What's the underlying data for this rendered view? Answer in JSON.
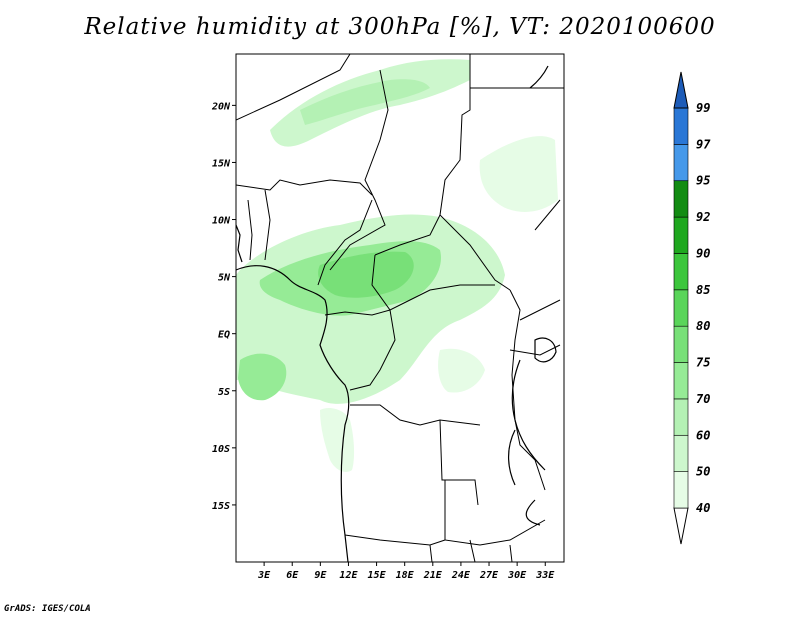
{
  "title": "Relative humidity at 300hPa [%], VT: 2020100600",
  "credit": "GrADS: IGES/COLA",
  "map": {
    "lat_labels": [
      "20N",
      "15N",
      "10N",
      "5N",
      "EQ",
      "5S",
      "10S",
      "15S"
    ],
    "lon_labels": [
      "3E",
      "6E",
      "9E",
      "12E",
      "15E",
      "18E",
      "21E",
      "24E",
      "27E",
      "30E",
      "33E"
    ],
    "lat_range": [
      -20,
      24.5
    ],
    "lon_range": [
      0,
      35
    ]
  },
  "colorbar": {
    "levels": [
      "40",
      "50",
      "60",
      "70",
      "75",
      "80",
      "85",
      "90",
      "92",
      "95",
      "97",
      "99"
    ],
    "colors": [
      "#ffffff",
      "#e6fce6",
      "#cdf7cd",
      "#b4f1b4",
      "#96eb96",
      "#78e078",
      "#5ad55a",
      "#3cc63c",
      "#1fa81f",
      "#138c13",
      "#4699ea",
      "#2a77d6",
      "#1d5cb8"
    ]
  }
}
